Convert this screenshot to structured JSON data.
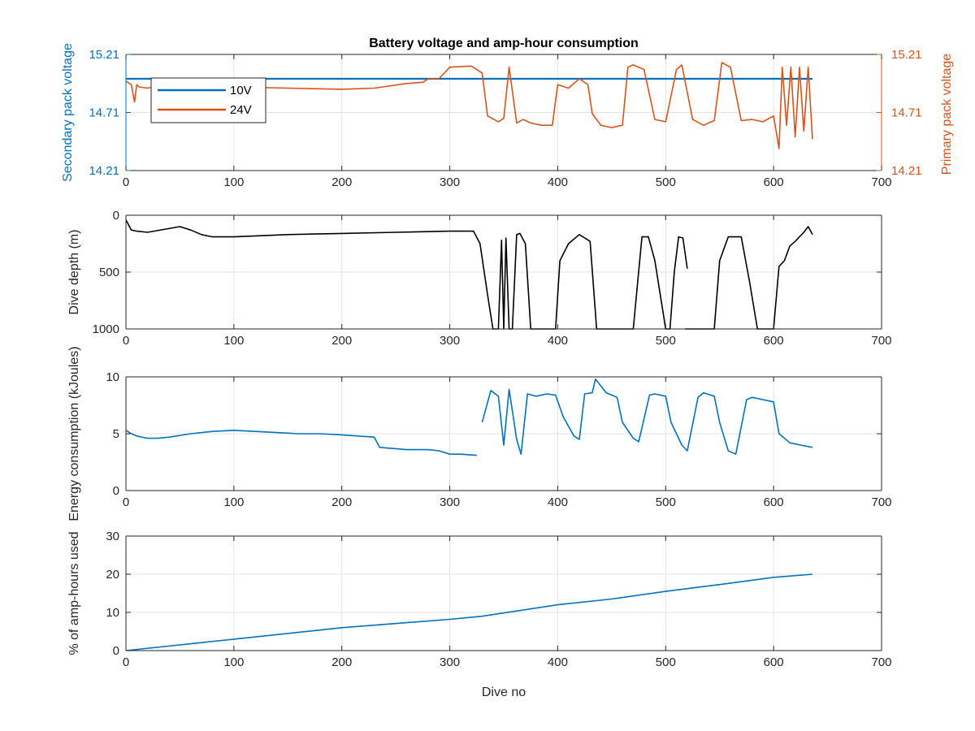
{
  "figure": {
    "title": "Battery voltage and amp-hour consumption",
    "colors": {
      "blue": "#0072BD",
      "orange": "#D95319",
      "black": "#000000",
      "grid": "#e3e3e3",
      "axis": "#262626"
    }
  },
  "chart_data": [
    {
      "type": "line",
      "title": "Battery voltage and amp-hour consumption",
      "xlabel": "",
      "ylabel_left": "Secondary pack voltage",
      "ylabel_right": "Primary pack voltage",
      "xlim": [
        0,
        700
      ],
      "ylim_left": [
        14.21,
        15.21
      ],
      "ylim_right": [
        14.21,
        15.21
      ],
      "xticks": [
        0,
        100,
        200,
        300,
        400,
        500,
        600,
        700
      ],
      "yticks_left": [
        "14.21",
        "14.71",
        "15.21"
      ],
      "yticks_right": [
        "14.21",
        "14.71",
        "15.21"
      ],
      "grid": true,
      "legend": {
        "placement": "top-left",
        "entries": [
          "10V",
          "24V"
        ]
      },
      "series": [
        {
          "name": "10V",
          "axis": "left",
          "color": "#0072BD",
          "x": [
            0,
            636
          ],
          "y": [
            15.0,
            15.0
          ]
        },
        {
          "name": "24V",
          "axis": "right",
          "color": "#D95319",
          "x": [
            0,
            5,
            8,
            10,
            12,
            20,
            40,
            60,
            80,
            100,
            150,
            200,
            230,
            260,
            275,
            280,
            290,
            300,
            320,
            330,
            335,
            345,
            350,
            355,
            362,
            368,
            375,
            385,
            395,
            400,
            410,
            420,
            428,
            432,
            440,
            450,
            460,
            465,
            470,
            480,
            490,
            500,
            510,
            515,
            525,
            535,
            545,
            552,
            556,
            560,
            570,
            580,
            590,
            600,
            605,
            608,
            612,
            616,
            620,
            624,
            628,
            632,
            636
          ],
          "y": [
            14.98,
            14.95,
            14.8,
            14.95,
            14.93,
            14.92,
            14.95,
            14.93,
            14.92,
            14.93,
            14.92,
            14.91,
            14.92,
            14.96,
            14.97,
            15.0,
            15.0,
            15.1,
            15.11,
            15.05,
            14.68,
            14.63,
            14.66,
            15.1,
            14.62,
            14.65,
            14.62,
            14.6,
            14.6,
            14.95,
            14.92,
            15.0,
            14.95,
            14.7,
            14.6,
            14.58,
            14.6,
            15.1,
            15.12,
            15.08,
            14.65,
            14.63,
            15.08,
            15.12,
            14.65,
            14.6,
            14.64,
            15.14,
            15.12,
            15.1,
            14.64,
            14.65,
            14.63,
            14.68,
            14.4,
            15.1,
            14.6,
            15.1,
            14.5,
            15.1,
            14.55,
            15.1,
            14.48
          ]
        }
      ]
    },
    {
      "type": "line",
      "xlabel": "",
      "ylabel": "Dive depth (m)",
      "xlim": [
        0,
        700
      ],
      "ylim": [
        1000,
        0
      ],
      "yreverse": true,
      "xticks": [
        0,
        100,
        200,
        300,
        400,
        500,
        600,
        700
      ],
      "yticks": [
        "0",
        "500",
        "1000"
      ],
      "grid": true,
      "series": [
        {
          "color": "#000000",
          "x": [
            0,
            5,
            10,
            20,
            50,
            60,
            70,
            80,
            100,
            150,
            200,
            250,
            300,
            322,
            328,
            335,
            340,
            345,
            348,
            350,
            352,
            355,
            358,
            362,
            365,
            370,
            375,
            380,
            398,
            402,
            410,
            420,
            430,
            436,
            445,
            470,
            478,
            484,
            490,
            500,
            504,
            508,
            512,
            516,
            520
          ],
          "y": [
            40,
            130,
            140,
            150,
            100,
            130,
            170,
            190,
            190,
            170,
            160,
            150,
            140,
            140,
            250,
            700,
            1000,
            1000,
            220,
            1000,
            200,
            1000,
            1000,
            170,
            160,
            250,
            1000,
            1000,
            1000,
            400,
            250,
            170,
            230,
            1000,
            1000,
            1000,
            190,
            190,
            400,
            1000,
            1000,
            500,
            190,
            200,
            470
          ]
        },
        {
          "color": "#000000",
          "x": [
            518,
            530,
            545,
            550,
            558,
            570,
            578,
            585,
            600,
            605,
            610,
            615,
            620,
            628,
            632,
            636
          ],
          "y": [
            1000,
            1000,
            1000,
            400,
            190,
            190,
            600,
            1000,
            1000,
            450,
            400,
            270,
            230,
            150,
            100,
            170
          ]
        }
      ]
    },
    {
      "type": "line",
      "xlabel": "",
      "ylabel": "Energy consumption (kJoules)",
      "xlim": [
        0,
        700
      ],
      "ylim": [
        0,
        10
      ],
      "xticks": [
        0,
        100,
        200,
        300,
        400,
        500,
        600,
        700
      ],
      "yticks": [
        "0",
        "5",
        "10"
      ],
      "grid": true,
      "series": [
        {
          "color": "#0072BD",
          "x": [
            0,
            5,
            10,
            20,
            30,
            40,
            60,
            80,
            100,
            120,
            140,
            160,
            180,
            200,
            230,
            235,
            260,
            280,
            290,
            300,
            310,
            325
          ],
          "y": [
            5.3,
            5.0,
            4.8,
            4.6,
            4.6,
            4.7,
            5.0,
            5.2,
            5.3,
            5.2,
            5.1,
            5.0,
            5.0,
            4.9,
            4.7,
            3.8,
            3.6,
            3.6,
            3.5,
            3.2,
            3.2,
            3.1
          ]
        },
        {
          "color": "#0072BD",
          "x": [
            330,
            338,
            345,
            350,
            355,
            362,
            366,
            372,
            380,
            390,
            398,
            405,
            415,
            420,
            425,
            432,
            435,
            445,
            455,
            460,
            470,
            475,
            485,
            490,
            500,
            505,
            515,
            520,
            530,
            535,
            545,
            550,
            558,
            565,
            575,
            580,
            590,
            600,
            605,
            615,
            625,
            636
          ],
          "y": [
            6.0,
            8.8,
            8.3,
            4.0,
            8.9,
            4.5,
            3.2,
            8.5,
            8.3,
            8.5,
            8.4,
            6.5,
            4.8,
            4.5,
            8.5,
            8.6,
            9.8,
            8.6,
            8.2,
            6.0,
            4.6,
            4.3,
            8.4,
            8.5,
            8.3,
            6.0,
            4.0,
            3.5,
            8.2,
            8.6,
            8.3,
            6.0,
            3.5,
            3.2,
            8.0,
            8.2,
            8.0,
            7.8,
            5.0,
            4.2,
            4.0,
            3.8
          ]
        }
      ]
    },
    {
      "type": "line",
      "xlabel": "Dive no",
      "ylabel": "% of amp-hours used",
      "xlim": [
        0,
        700
      ],
      "ylim": [
        0,
        30
      ],
      "xticks": [
        0,
        100,
        200,
        300,
        400,
        500,
        600,
        700
      ],
      "yticks": [
        "0",
        "10",
        "20",
        "30"
      ],
      "grid": true,
      "series": [
        {
          "color": "#0072BD",
          "x": [
            0,
            100,
            200,
            300,
            330,
            400,
            450,
            500,
            550,
            600,
            636
          ],
          "y": [
            0,
            3.0,
            6.0,
            8.2,
            9.0,
            12.0,
            13.5,
            15.5,
            17.3,
            19.2,
            20.0
          ]
        }
      ]
    }
  ]
}
